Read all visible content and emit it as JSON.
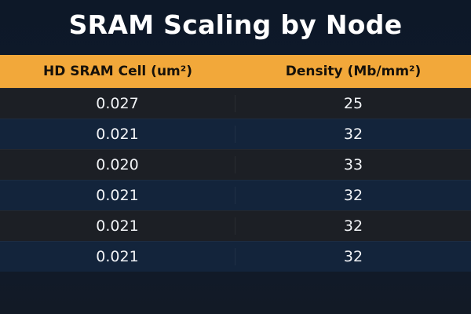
{
  "title": "SRAM Scaling by Node",
  "table": {
    "header": [
      "HD SRAM Cell (um²)",
      "Density (Mb/mm²)"
    ],
    "rows": [
      [
        "0.027",
        "25"
      ],
      [
        "0.021",
        "32"
      ],
      [
        "0.020",
        "33"
      ],
      [
        "0.021",
        "32"
      ],
      [
        "0.021",
        "32"
      ],
      [
        "0.021",
        "32"
      ]
    ]
  }
}
